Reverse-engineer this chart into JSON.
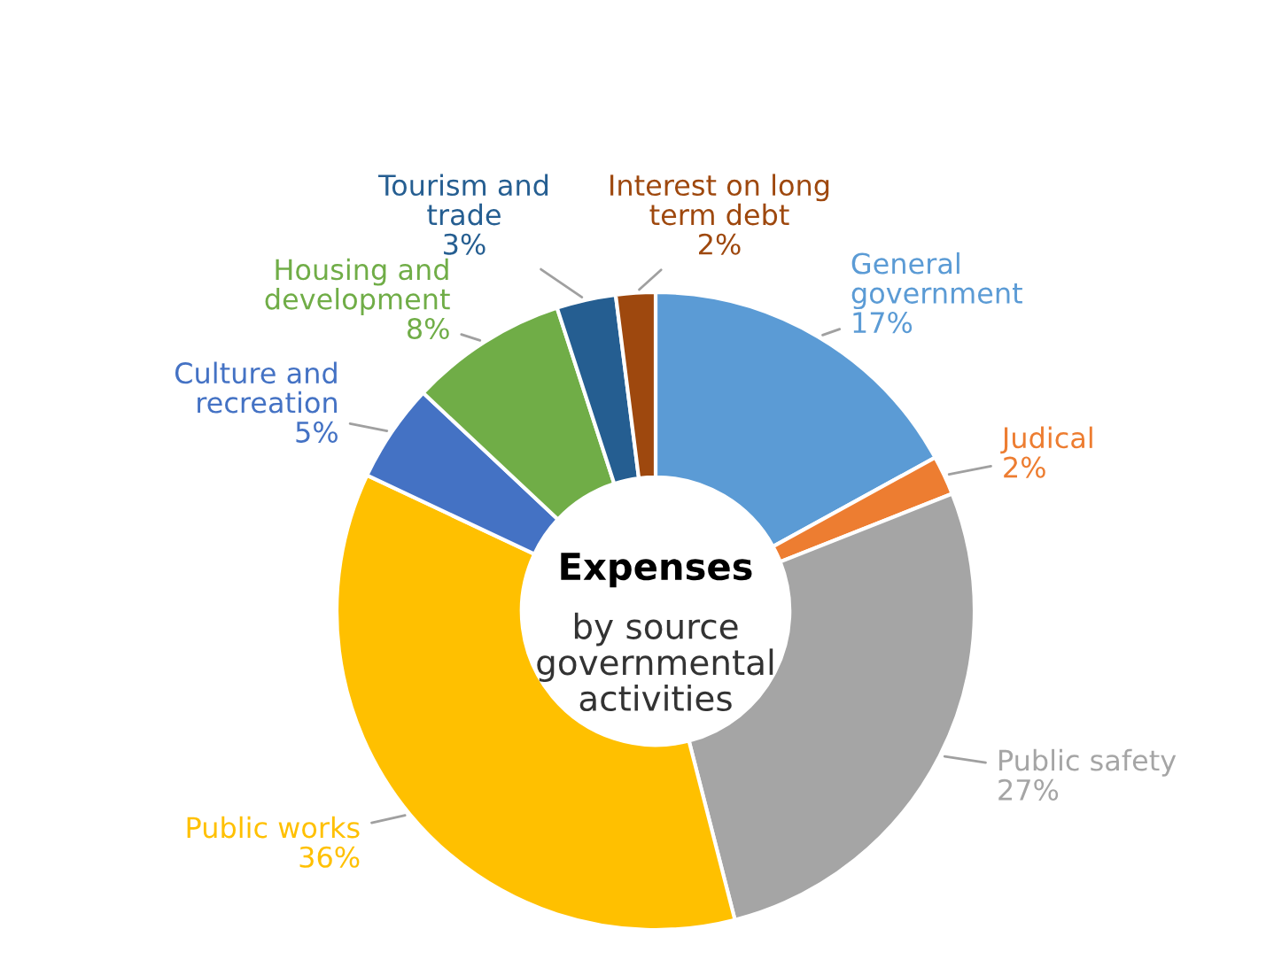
{
  "chart_data": {
    "type": "donut",
    "title": "Expenses",
    "subtitle": "by source\ngovernmental\nactivities",
    "categories": [
      "General\ngovernment",
      "Judical",
      "Public safety",
      "Public works",
      "Culture and\nrecreation",
      "Housing and\ndevelopment",
      "Tourism and\ntrade",
      "Interest on long\nterm debt"
    ],
    "values": [
      17,
      2,
      27,
      36,
      5,
      8,
      3,
      2
    ],
    "value_labels": [
      "17%",
      "2%",
      "27%",
      "36%",
      "5%",
      "8%",
      "3%",
      "2%"
    ],
    "colors": [
      "#5b9bd5",
      "#ed7d31",
      "#a5a5a5",
      "#ffc000",
      "#4472c4",
      "#70ad47",
      "#255e91",
      "#9e480e"
    ],
    "legend": false
  }
}
